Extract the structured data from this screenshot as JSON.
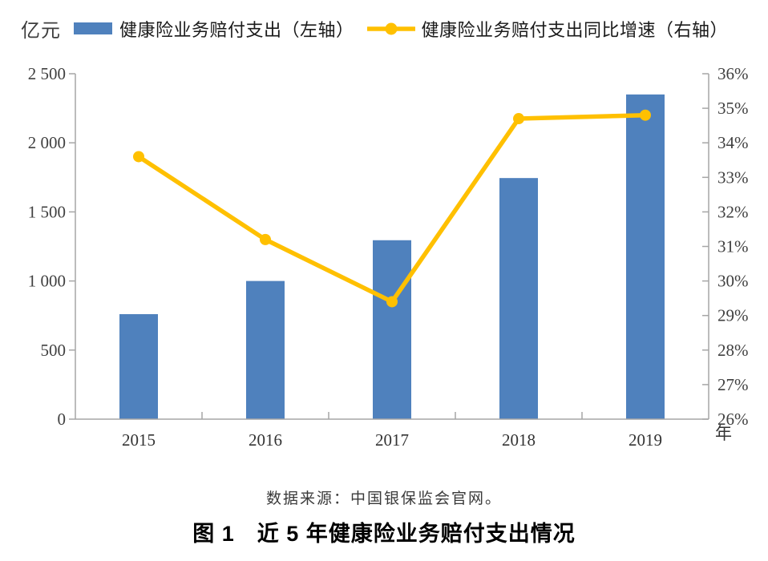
{
  "figure": {
    "unit_label": "亿元",
    "legend": [
      {
        "label": "健康险业务赔付支出（左轴）",
        "marker": "bar-swatch",
        "color": "#4F81BD"
      },
      {
        "label": "健康险业务赔付支出同比增速（右轴）",
        "marker": "line-dot",
        "color": "#FFC000"
      }
    ],
    "source_note": "数据来源：中国银保监会官网。",
    "caption": "图 1　近 5 年健康险业务赔付支出情况"
  },
  "chart_data": {
    "type": "combo",
    "categories": [
      "2015",
      "2016",
      "2017",
      "2018",
      "2019"
    ],
    "series": [
      {
        "name": "健康险业务赔付支出（左轴）",
        "type": "bar",
        "axis": "left",
        "unit": "亿元",
        "color": "#4F81BD",
        "values": [
          760,
          1000,
          1295,
          1745,
          2350
        ]
      },
      {
        "name": "健康险业务赔付支出同比增速（右轴）",
        "type": "line",
        "axis": "right",
        "unit": "%",
        "color": "#FFC000",
        "values": [
          33.6,
          31.2,
          29.4,
          34.7,
          34.8
        ]
      }
    ],
    "left_axis": {
      "title": "亿元",
      "min": 0,
      "max": 2500,
      "step": 500,
      "tick_labels": [
        "2 500",
        "2 000",
        "1 500",
        "1 000",
        "500",
        "0"
      ]
    },
    "right_axis": {
      "min": 26,
      "max": 36,
      "step": 1,
      "tick_labels": [
        "36%",
        "35%",
        "34%",
        "33%",
        "32%",
        "31%",
        "30%",
        "29%",
        "28%",
        "27%",
        "26%"
      ]
    },
    "x_axis": {
      "title": "年",
      "tick_labels": [
        "2015",
        "2016",
        "2017",
        "2018",
        "2019"
      ]
    },
    "legend_position": "top",
    "grid": false
  },
  "colors": {
    "bar": "#4F81BD",
    "line": "#FFC000",
    "axis": "#A6A6A6",
    "tick_text": "#404040"
  }
}
